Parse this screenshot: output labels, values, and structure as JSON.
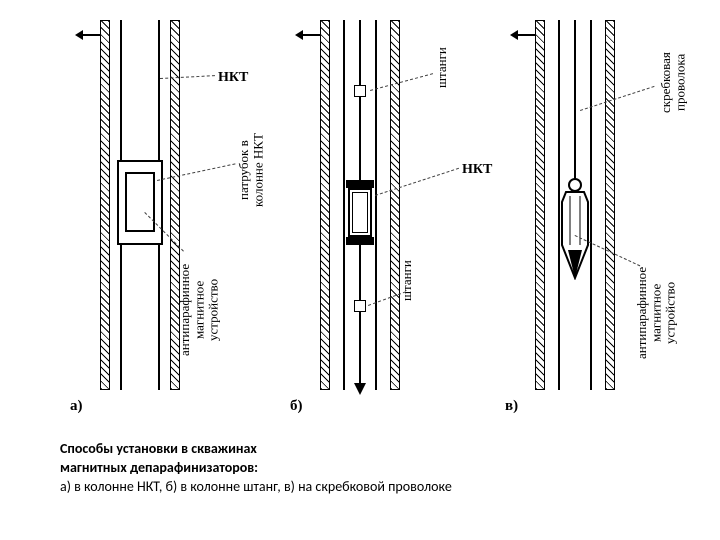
{
  "caption": {
    "line1": "Способы установки в скважинах",
    "line2": "магнитных депарафинизаторов:",
    "line3": "а) в колонне НКТ, б) в колонне штанг, в) на скребковой проволоке"
  },
  "columns": {
    "a": {
      "sublabel": "а)"
    },
    "b": {
      "sublabel": "б)"
    },
    "c": {
      "sublabel": "в)"
    }
  },
  "labels": {
    "nkt1": "НКТ",
    "nkt2": "НКТ",
    "patrubok": "патрубок в\nколонне НКТ",
    "antipar1": "антипарафинное\nмагнитное\nустройство",
    "antipar2": "антипарафинное\nмагнитное\nустройство",
    "shtangi1": "штанги",
    "shtangi2": "штанги",
    "skrebkov": "скребковая\nпроволока"
  },
  "style": {
    "colors": {
      "bg": "#ffffff",
      "stroke": "#000000",
      "dash": "#404040"
    },
    "fontsize": {
      "caption": 14,
      "label": 13,
      "sublabel": 15
    }
  }
}
